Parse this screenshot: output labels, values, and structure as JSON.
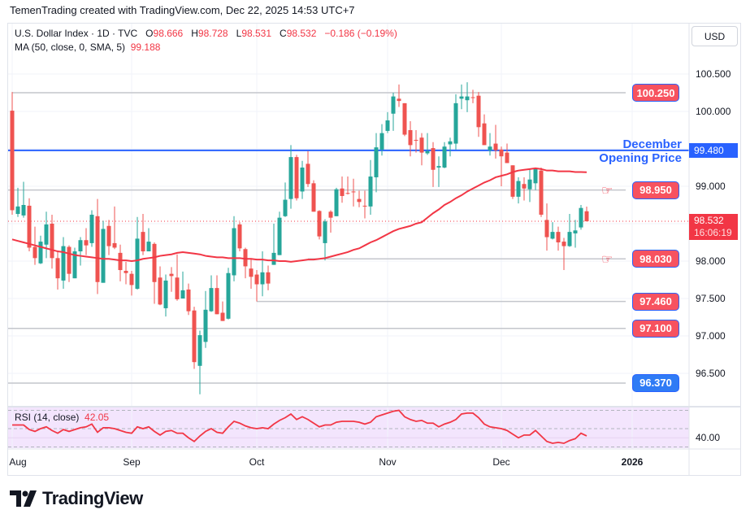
{
  "credit": "TemenTrading created with TradingView.com, Dec 22, 2025 14:53 UTC+7",
  "legend": {
    "symbol": "U.S. Dollar Index · 1D · TVC",
    "o_label": "O",
    "o": "98.666",
    "h_label": "H",
    "h": "98.728",
    "l_label": "L",
    "l": "98.531",
    "c_label": "C",
    "c": "98.532",
    "change": "−0.186 (−0.19%)",
    "ma_label": "MA (50, close, 0, SMA, 5)",
    "ma_value": "99.188"
  },
  "currency_button": "USD",
  "annotation": {
    "line1": "December",
    "line2": "Opening Price"
  },
  "current_price": {
    "value": "98.532",
    "countdown": "16:06:19"
  },
  "december_open": "99.480",
  "levels": [
    {
      "value": "100.250",
      "color": "red",
      "price": 100.25,
      "start_date": "2025-08-01",
      "hand": false
    },
    {
      "value": "98.950",
      "color": "red",
      "price": 98.95,
      "start_date": "2025-07-31",
      "hand": true
    },
    {
      "value": "98.030",
      "color": "red",
      "price": 98.03,
      "start_date": "2025-10-14",
      "hand": true
    },
    {
      "value": "97.460",
      "color": "red",
      "price": 97.46,
      "start_date": "2025-10-01",
      "hand": false
    },
    {
      "value": "97.100",
      "color": "red",
      "price": 97.1,
      "start_date": "2025-07-31",
      "hand": false
    },
    {
      "value": "96.370",
      "color": "blue",
      "price": 96.37,
      "start_date": "2025-07-31",
      "hand": false
    }
  ],
  "price_axis": [
    "100.500",
    "100.000",
    "99.000",
    "98.000",
    "97.500",
    "97.000",
    "96.500"
  ],
  "rsi": {
    "label": "RSI (14, close)",
    "value": "42.05",
    "axis_label": "40.00"
  },
  "brand": "TradingView",
  "colors": {
    "up": "#26a69a",
    "down": "#ef5350",
    "ma": "#f23645",
    "rsi": "#f23645",
    "december_line": "#2962ff",
    "rsi_band": "#f3e5fd"
  },
  "chart_data": {
    "type": "candlestick",
    "symbol": "U.S. Dollar Index",
    "interval": "1D",
    "first_date": "2025-08-01",
    "last_date": "2025-12-22",
    "ylim": [
      96.1,
      100.7
    ],
    "x_ticks": [
      {
        "label": "Aug",
        "date": "2025-08-01"
      },
      {
        "label": "Sep",
        "date": "2025-09-01"
      },
      {
        "label": "Oct",
        "date": "2025-10-01"
      },
      {
        "label": "Nov",
        "date": "2025-11-03"
      },
      {
        "label": "Dec",
        "date": "2025-12-01"
      },
      {
        "label": "2026",
        "date": "2026-01-01"
      }
    ],
    "ohlc": [
      [
        100.01,
        100.26,
        98.62,
        98.68
      ],
      [
        98.63,
        98.98,
        98.59,
        98.73
      ],
      [
        98.61,
        99.06,
        98.58,
        98.75
      ],
      [
        98.74,
        98.84,
        98.13,
        98.18
      ],
      [
        98.19,
        98.46,
        97.95,
        98.04
      ],
      [
        97.97,
        98.34,
        97.96,
        98.26
      ],
      [
        98.22,
        98.66,
        98.04,
        98.49
      ],
      [
        98.5,
        98.62,
        97.9,
        98.04
      ],
      [
        98.04,
        98.13,
        97.62,
        97.77
      ],
      [
        97.74,
        98.32,
        97.63,
        98.2
      ],
      [
        98.19,
        98.21,
        97.72,
        97.83
      ],
      [
        97.77,
        98.18,
        97.77,
        98.13
      ],
      [
        98.13,
        98.32,
        97.94,
        98.28
      ],
      [
        98.28,
        98.44,
        98.08,
        98.21
      ],
      [
        98.24,
        98.68,
        98.19,
        98.62
      ],
      [
        98.6,
        98.83,
        97.56,
        97.72
      ],
      [
        97.71,
        98.54,
        97.71,
        98.43
      ],
      [
        98.47,
        98.55,
        98.08,
        98.2
      ],
      [
        98.24,
        98.73,
        98.16,
        98.18
      ],
      [
        98.11,
        98.22,
        97.73,
        97.88
      ],
      [
        97.87,
        97.99,
        97.69,
        97.84
      ],
      [
        97.83,
        97.87,
        97.54,
        97.68
      ],
      [
        97.63,
        98.59,
        97.62,
        98.3
      ],
      [
        98.39,
        98.63,
        98.08,
        98.13
      ],
      [
        98.13,
        98.44,
        98.13,
        98.26
      ],
      [
        98.23,
        98.25,
        97.43,
        97.72
      ],
      [
        97.78,
        97.93,
        97.41,
        97.42
      ],
      [
        97.37,
        97.82,
        97.26,
        97.74
      ],
      [
        97.83,
        97.92,
        97.59,
        97.8
      ],
      [
        97.78,
        98.09,
        97.47,
        97.49
      ],
      [
        97.5,
        97.86,
        97.5,
        97.61
      ],
      [
        97.62,
        97.7,
        97.28,
        97.33
      ],
      [
        97.34,
        97.39,
        96.56,
        96.65
      ],
      [
        96.6,
        97.07,
        96.22,
        97.01
      ],
      [
        96.92,
        97.6,
        96.84,
        97.35
      ],
      [
        97.33,
        97.81,
        97.32,
        97.64
      ],
      [
        97.64,
        97.81,
        97.29,
        97.29
      ],
      [
        97.31,
        97.46,
        97.2,
        97.2
      ],
      [
        97.23,
        97.91,
        97.22,
        97.84
      ],
      [
        97.81,
        98.6,
        97.73,
        98.44
      ],
      [
        98.49,
        98.52,
        98.13,
        98.17
      ],
      [
        98.16,
        98.18,
        97.77,
        97.93
      ],
      [
        97.9,
        98.04,
        97.63,
        97.79
      ],
      [
        97.82,
        97.88,
        97.46,
        97.69
      ],
      [
        97.69,
        98.13,
        97.53,
        97.85
      ],
      [
        97.85,
        97.94,
        97.61,
        97.7
      ],
      [
        97.95,
        98.5,
        97.95,
        98.11
      ],
      [
        98.08,
        98.66,
        98.08,
        98.58
      ],
      [
        98.6,
        99.05,
        98.59,
        98.82
      ],
      [
        98.83,
        99.55,
        98.7,
        99.39
      ],
      [
        99.39,
        99.42,
        98.81,
        98.84
      ],
      [
        98.93,
        99.34,
        98.83,
        99.25
      ],
      [
        99.3,
        99.47,
        98.99,
        99.03
      ],
      [
        99.04,
        99.08,
        98.66,
        98.66
      ],
      [
        98.67,
        98.68,
        98.29,
        98.33
      ],
      [
        98.24,
        98.56,
        98.01,
        98.53
      ],
      [
        98.66,
        98.68,
        98.38,
        98.58
      ],
      [
        98.6,
        98.98,
        98.6,
        98.96
      ],
      [
        98.97,
        99.13,
        98.78,
        98.87
      ],
      [
        98.91,
        99.13,
        98.89,
        98.9
      ],
      [
        98.93,
        99.1,
        98.73,
        98.92
      ],
      [
        98.83,
        98.94,
        98.72,
        98.79
      ],
      [
        98.74,
        98.94,
        98.57,
        98.73
      ],
      [
        98.73,
        99.35,
        98.62,
        99.13
      ],
      [
        99.12,
        99.71,
        98.92,
        99.52
      ],
      [
        99.49,
        99.83,
        99.41,
        99.71
      ],
      [
        99.74,
        99.99,
        99.71,
        99.88
      ],
      [
        99.97,
        100.25,
        99.74,
        100.2
      ],
      [
        100.17,
        100.36,
        100.06,
        100.14
      ],
      [
        100.11,
        100.11,
        99.67,
        99.69
      ],
      [
        99.75,
        99.87,
        99.4,
        99.55
      ],
      [
        99.62,
        99.75,
        99.45,
        99.61
      ],
      [
        99.65,
        99.71,
        99.28,
        99.45
      ],
      [
        99.44,
        99.71,
        99.42,
        99.47
      ],
      [
        99.51,
        99.59,
        98.99,
        99.22
      ],
      [
        99.25,
        99.4,
        98.99,
        99.27
      ],
      [
        99.25,
        99.59,
        99.24,
        99.53
      ],
      [
        99.56,
        99.65,
        99.4,
        99.6
      ],
      [
        99.57,
        100.23,
        99.49,
        100.11
      ],
      [
        100.17,
        100.36,
        100.03,
        100.2
      ],
      [
        100.15,
        100.39,
        99.99,
        100.2
      ],
      [
        100.19,
        100.29,
        100.11,
        100.18
      ],
      [
        100.21,
        100.26,
        99.66,
        99.79
      ],
      [
        99.84,
        99.96,
        99.55,
        99.55
      ],
      [
        99.48,
        99.71,
        99.41,
        99.53
      ],
      [
        99.57,
        99.82,
        99.37,
        99.48
      ],
      [
        99.49,
        99.53,
        99.0,
        99.4
      ],
      [
        99.45,
        99.57,
        99.31,
        99.31
      ],
      [
        99.28,
        99.28,
        98.83,
        98.86
      ],
      [
        98.86,
        99.12,
        98.77,
        99.07
      ],
      [
        99.03,
        99.12,
        98.81,
        98.97
      ],
      [
        98.96,
        99.23,
        98.79,
        99.09
      ],
      [
        99.04,
        99.25,
        98.95,
        99.24
      ],
      [
        99.21,
        99.25,
        98.59,
        98.62
      ],
      [
        98.55,
        98.77,
        98.14,
        98.32
      ],
      [
        98.3,
        98.52,
        98.29,
        98.39
      ],
      [
        98.39,
        98.46,
        98.14,
        98.25
      ],
      [
        98.26,
        98.31,
        97.88,
        98.2
      ],
      [
        98.2,
        98.63,
        98.19,
        98.39
      ],
      [
        98.37,
        98.55,
        98.18,
        98.41
      ],
      [
        98.45,
        98.75,
        98.42,
        98.71
      ],
      [
        98.666,
        98.728,
        98.531,
        98.532
      ]
    ],
    "ma50": [
      98.29,
      98.27,
      98.25,
      98.23,
      98.21,
      98.19,
      98.17,
      98.15,
      98.13,
      98.12,
      98.1,
      98.08,
      98.07,
      98.06,
      98.05,
      98.04,
      98.03,
      98.03,
      98.02,
      98.01,
      98.01,
      98.0,
      98.01,
      98.03,
      98.04,
      98.05,
      98.07,
      98.08,
      98.09,
      98.11,
      98.12,
      98.11,
      98.1,
      98.09,
      98.07,
      98.06,
      98.05,
      98.05,
      98.04,
      98.04,
      98.04,
      98.03,
      98.03,
      98.02,
      98.02,
      98.01,
      98.01,
      98.0,
      98.0,
      97.99,
      98.0,
      98.01,
      98.02,
      98.02,
      98.03,
      98.04,
      98.06,
      98.08,
      98.1,
      98.12,
      98.15,
      98.17,
      98.21,
      98.25,
      98.28,
      98.32,
      98.36,
      98.4,
      98.43,
      98.45,
      98.47,
      98.5,
      98.52,
      98.58,
      98.64,
      98.69,
      98.75,
      98.79,
      98.84,
      98.88,
      98.93,
      98.97,
      99.01,
      99.05,
      99.08,
      99.12,
      99.14,
      99.16,
      99.19,
      99.21,
      99.22,
      99.23,
      99.24,
      99.23,
      99.21,
      99.21,
      99.2,
      99.2,
      99.2,
      99.19,
      99.19,
      99.188
    ],
    "rsi14": [
      54,
      54,
      54,
      49,
      47,
      50,
      52,
      48,
      45,
      49,
      47,
      49,
      51,
      52,
      55,
      46,
      51,
      51,
      50,
      48,
      46,
      45,
      52,
      50,
      52,
      47,
      43,
      47,
      48,
      45,
      45,
      40,
      36,
      42,
      47,
      50,
      46,
      45,
      52,
      58,
      56,
      53,
      51,
      50,
      51,
      50,
      55,
      59,
      62,
      66,
      60,
      63,
      60,
      56,
      52,
      54,
      54,
      57,
      58,
      58,
      58,
      57,
      55,
      57,
      63,
      65,
      67,
      69,
      70,
      63,
      60,
      58,
      59,
      56,
      56,
      52,
      55,
      57,
      60,
      66,
      67,
      67,
      62,
      55,
      52,
      51,
      50,
      48,
      44,
      40,
      43,
      43,
      48,
      42,
      36,
      34,
      35,
      34,
      37,
      39,
      45,
      42.05
    ],
    "rsi_levels": [
      70,
      50,
      30
    ],
    "rsi_ylim": [
      26,
      74
    ],
    "grid": true
  }
}
